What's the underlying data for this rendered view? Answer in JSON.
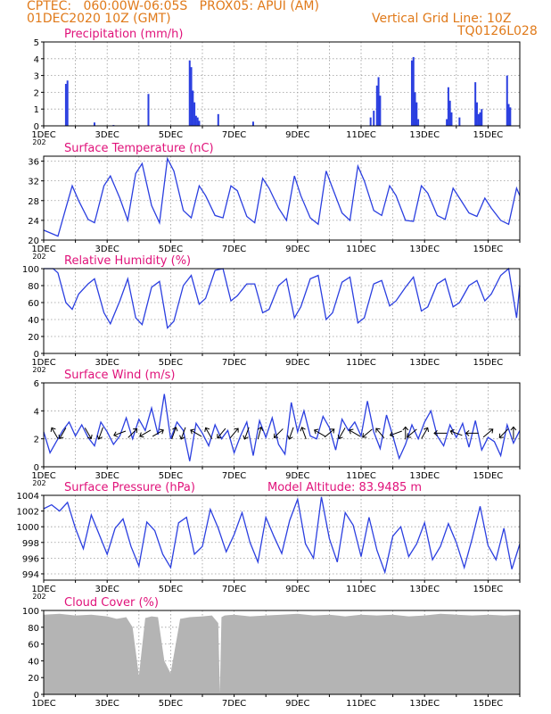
{
  "header": {
    "left_line1": "CPTEC:   060:00W-06:05S   PROX05: APUI (AM)",
    "left_line2": "01DEC2020 10Z (GMT)",
    "right_line1": "Vertical Grid Line: 10Z",
    "right_line2": "TQ0126L028"
  },
  "colors": {
    "title": "#e0127a",
    "header": "#e07a1a",
    "series": "#2b3fe0",
    "cloud": "#b4b4b4"
  },
  "x_labels": [
    "1DEC",
    "3DEC",
    "5DEC",
    "7DEC",
    "9DEC",
    "11DEC",
    "13DEC",
    "15DEC"
  ],
  "year_stub": "202",
  "chart_data": [
    {
      "type": "bar",
      "title": "Precipitation (mm/h)",
      "ylim": [
        0,
        5
      ],
      "yticks": [
        0,
        1,
        2,
        3,
        4,
        5
      ],
      "x_range_days": [
        1,
        16
      ],
      "bars": [
        [
          1.7,
          2.5
        ],
        [
          1.75,
          2.7
        ],
        [
          2.6,
          0.2
        ],
        [
          3.2,
          0.05
        ],
        [
          4.3,
          1.9
        ],
        [
          5.6,
          3.9
        ],
        [
          5.65,
          3.5
        ],
        [
          5.7,
          2.1
        ],
        [
          5.75,
          1.4
        ],
        [
          5.8,
          0.6
        ],
        [
          5.85,
          0.5
        ],
        [
          5.9,
          0.3
        ],
        [
          6.5,
          0.7
        ],
        [
          7.6,
          0.25
        ],
        [
          11.3,
          0.5
        ],
        [
          11.4,
          0.9
        ],
        [
          11.5,
          2.4
        ],
        [
          11.55,
          2.9
        ],
        [
          11.6,
          1.8
        ],
        [
          12.6,
          3.9
        ],
        [
          12.65,
          4.1
        ],
        [
          12.7,
          2.0
        ],
        [
          12.75,
          1.4
        ],
        [
          12.8,
          0.4
        ],
        [
          13.7,
          0.4
        ],
        [
          13.75,
          2.3
        ],
        [
          13.8,
          1.5
        ],
        [
          13.85,
          0.8
        ],
        [
          14.1,
          0.5
        ],
        [
          14.6,
          2.6
        ],
        [
          14.65,
          1.4
        ],
        [
          14.7,
          0.7
        ],
        [
          14.75,
          0.8
        ],
        [
          14.8,
          1.0
        ],
        [
          15.6,
          3.0
        ],
        [
          15.65,
          1.3
        ],
        [
          15.7,
          1.1
        ]
      ]
    },
    {
      "type": "line",
      "title": "Surface Temperature (nC)",
      "ylim": [
        20,
        37
      ],
      "yticks": [
        20,
        24,
        28,
        32,
        36
      ],
      "x_range_days": [
        1,
        16
      ],
      "x": [
        1.0,
        1.3,
        1.45,
        1.7,
        1.9,
        2.1,
        2.4,
        2.6,
        2.9,
        3.1,
        3.4,
        3.65,
        3.9,
        4.1,
        4.4,
        4.65,
        4.9,
        5.1,
        5.4,
        5.65,
        5.9,
        6.1,
        6.4,
        6.65,
        6.9,
        7.1,
        7.4,
        7.65,
        7.9,
        8.1,
        8.4,
        8.65,
        8.9,
        9.1,
        9.4,
        9.65,
        9.9,
        10.1,
        10.4,
        10.65,
        10.9,
        11.1,
        11.4,
        11.65,
        11.9,
        12.1,
        12.4,
        12.65,
        12.9,
        13.1,
        13.4,
        13.65,
        13.9,
        14.1,
        14.4,
        14.65,
        14.9,
        15.1,
        15.4,
        15.65,
        15.9,
        16.0
      ],
      "values": [
        22.0,
        21.2,
        20.8,
        26.5,
        31.0,
        28.0,
        24.2,
        23.5,
        31.0,
        33.0,
        28.5,
        24.0,
        33.5,
        35.5,
        27.0,
        23.5,
        36.5,
        34.0,
        26.0,
        24.5,
        31.0,
        29.0,
        25.0,
        24.5,
        31.0,
        30.0,
        24.8,
        23.5,
        32.5,
        30.5,
        26.5,
        24.0,
        33.0,
        29.0,
        24.5,
        23.2,
        34.0,
        30.5,
        25.5,
        24.0,
        35.0,
        32.0,
        26.0,
        25.0,
        31.0,
        29.0,
        24.0,
        23.8,
        31.0,
        29.5,
        25.0,
        24.2,
        30.5,
        28.5,
        25.5,
        24.8,
        28.5,
        26.5,
        24.0,
        23.2,
        30.5,
        29.0
      ]
    },
    {
      "type": "line",
      "title": "Relative Humidity (%)",
      "ylim": [
        0,
        100
      ],
      "yticks": [
        0,
        20,
        40,
        60,
        80,
        100
      ],
      "x_range_days": [
        1,
        16
      ],
      "x": [
        1.0,
        1.3,
        1.45,
        1.7,
        1.9,
        2.1,
        2.4,
        2.6,
        2.9,
        3.1,
        3.4,
        3.65,
        3.9,
        4.1,
        4.4,
        4.65,
        4.9,
        5.1,
        5.4,
        5.65,
        5.9,
        6.1,
        6.4,
        6.65,
        6.9,
        7.1,
        7.4,
        7.65,
        7.9,
        8.1,
        8.4,
        8.65,
        8.9,
        9.1,
        9.4,
        9.65,
        9.9,
        10.1,
        10.4,
        10.65,
        10.9,
        11.1,
        11.4,
        11.65,
        11.9,
        12.1,
        12.4,
        12.65,
        12.9,
        13.1,
        13.4,
        13.65,
        13.9,
        14.1,
        14.4,
        14.65,
        14.9,
        15.1,
        15.4,
        15.65,
        15.9,
        16.0
      ],
      "values": [
        100,
        100,
        95,
        60,
        52,
        70,
        82,
        88,
        48,
        35,
        62,
        88,
        42,
        34,
        78,
        85,
        30,
        38,
        80,
        92,
        58,
        65,
        98,
        100,
        62,
        68,
        82,
        82,
        48,
        52,
        80,
        88,
        42,
        55,
        88,
        92,
        40,
        48,
        84,
        90,
        36,
        42,
        82,
        86,
        56,
        62,
        78,
        90,
        50,
        55,
        82,
        88,
        55,
        60,
        80,
        86,
        62,
        70,
        92,
        100,
        42,
        80
      ]
    },
    {
      "type": "line",
      "title": "Surface Wind (m/s)",
      "ylim": [
        0,
        6
      ],
      "yticks": [
        0,
        2,
        4,
        6
      ],
      "x_range_days": [
        1,
        16
      ],
      "x": [
        1.0,
        1.2,
        1.4,
        1.6,
        1.8,
        2.0,
        2.2,
        2.4,
        2.6,
        2.8,
        3.0,
        3.2,
        3.4,
        3.6,
        3.8,
        4.0,
        4.2,
        4.4,
        4.6,
        4.8,
        5.0,
        5.2,
        5.4,
        5.6,
        5.8,
        6.0,
        6.2,
        6.4,
        6.6,
        6.8,
        7.0,
        7.2,
        7.4,
        7.6,
        7.8,
        8.0,
        8.2,
        8.4,
        8.6,
        8.8,
        9.0,
        9.2,
        9.4,
        9.6,
        9.8,
        10.0,
        10.2,
        10.4,
        10.6,
        10.8,
        11.0,
        11.2,
        11.4,
        11.6,
        11.8,
        12.0,
        12.2,
        12.4,
        12.6,
        12.8,
        13.0,
        13.2,
        13.4,
        13.6,
        13.8,
        14.0,
        14.2,
        14.4,
        14.6,
        14.8,
        15.0,
        15.2,
        15.4,
        15.6,
        15.8,
        16.0
      ],
      "values": [
        2.5,
        1.0,
        1.8,
        2.6,
        3.2,
        2.2,
        3.0,
        2.1,
        1.5,
        3.2,
        2.5,
        1.6,
        2.2,
        3.5,
        2.0,
        3.4,
        2.6,
        4.2,
        2.3,
        5.2,
        2.0,
        3.2,
        2.6,
        0.4,
        3.1,
        2.4,
        1.5,
        3.0,
        2.0,
        2.6,
        1.0,
        2.2,
        3.2,
        0.8,
        3.3,
        2.1,
        3.5,
        1.6,
        0.9,
        4.6,
        2.5,
        4.0,
        2.2,
        2.0,
        3.6,
        2.8,
        1.2,
        3.4,
        2.6,
        3.2,
        2.2,
        4.7,
        2.5,
        1.3,
        3.7,
        2.2,
        0.6,
        1.6,
        3.0,
        2.0,
        3.2,
        4.0,
        2.2,
        1.5,
        3.0,
        2.1,
        3.1,
        1.4,
        3.3,
        1.2,
        2.1,
        1.8,
        0.8,
        3.0,
        1.7,
        2.6
      ]
    },
    {
      "type": "line",
      "title": "Surface Pressure (hPa)",
      "annotation": "Model Altitude: 83.9485 m",
      "ylim": [
        993.2,
        1004
      ],
      "yticks": [
        994,
        996,
        998,
        1000,
        1002,
        1004
      ],
      "x_range_days": [
        1,
        16
      ],
      "x": [
        1.0,
        1.25,
        1.5,
        1.75,
        2.0,
        2.25,
        2.5,
        2.75,
        3.0,
        3.25,
        3.5,
        3.75,
        4.0,
        4.25,
        4.5,
        4.75,
        5.0,
        5.25,
        5.5,
        5.75,
        6.0,
        6.25,
        6.5,
        6.75,
        7.0,
        7.25,
        7.5,
        7.75,
        8.0,
        8.25,
        8.5,
        8.75,
        9.0,
        9.25,
        9.5,
        9.75,
        10.0,
        10.25,
        10.5,
        10.75,
        11.0,
        11.25,
        11.5,
        11.75,
        12.0,
        12.25,
        12.5,
        12.75,
        13.0,
        13.25,
        13.5,
        13.75,
        14.0,
        14.25,
        14.5,
        14.75,
        15.0,
        15.25,
        15.5,
        15.75,
        16.0
      ],
      "values": [
        1002.3,
        1002.8,
        1002.0,
        1003.1,
        999.8,
        997.2,
        1001.5,
        999.0,
        996.5,
        999.8,
        1001.0,
        997.5,
        995.0,
        1000.6,
        999.5,
        996.5,
        994.8,
        1000.5,
        1001.2,
        996.5,
        997.5,
        1002.2,
        999.8,
        996.8,
        999.0,
        1001.8,
        998.0,
        995.5,
        1001.2,
        998.8,
        996.6,
        1000.8,
        1003.5,
        997.8,
        996.0,
        1003.8,
        998.5,
        995.5,
        1001.8,
        1000.2,
        996.2,
        1001.2,
        997.0,
        994.2,
        998.8,
        1000.0,
        996.2,
        997.8,
        1000.5,
        995.8,
        997.5,
        1000.4,
        998.0,
        994.8,
        998.5,
        1002.6,
        997.6,
        995.8,
        999.8,
        994.6,
        997.8
      ]
    },
    {
      "type": "area",
      "title": "Cloud Cover (%)",
      "ylim": [
        0,
        100
      ],
      "yticks": [
        0,
        20,
        40,
        60,
        80,
        100
      ],
      "x_range_days": [
        1,
        16
      ],
      "x": [
        1.0,
        1.5,
        2.0,
        2.5,
        3.0,
        3.3,
        3.6,
        3.8,
        4.0,
        4.2,
        4.4,
        4.6,
        4.8,
        5.0,
        5.3,
        5.6,
        6.0,
        6.3,
        6.5,
        6.55,
        6.6,
        6.7,
        7.0,
        7.5,
        8.0,
        8.5,
        9.0,
        9.5,
        10.0,
        10.5,
        11.0,
        11.5,
        12.0,
        12.5,
        13.0,
        13.5,
        14.0,
        14.5,
        15.0,
        15.5,
        16.0
      ],
      "values": [
        95,
        96,
        94,
        95,
        93,
        90,
        92,
        80,
        22,
        91,
        93,
        92,
        40,
        25,
        90,
        92,
        93,
        94,
        85,
        2,
        92,
        94,
        95,
        93,
        94,
        95,
        96,
        94,
        95,
        93,
        95,
        94,
        95,
        93,
        94,
        96,
        95,
        94,
        95,
        94,
        95
      ]
    }
  ],
  "wind_arrows": [
    [
      1.35,
      330
    ],
    [
      1.6,
      210
    ],
    [
      2.4,
      150
    ],
    [
      2.8,
      200
    ],
    [
      3.4,
      250
    ],
    [
      3.8,
      45
    ],
    [
      4.2,
      240
    ],
    [
      4.6,
      60
    ],
    [
      5.1,
      20
    ],
    [
      5.4,
      200
    ],
    [
      5.8,
      300
    ],
    [
      6.2,
      330
    ],
    [
      6.6,
      220
    ],
    [
      7.0,
      40
    ],
    [
      7.4,
      200
    ],
    [
      7.8,
      15
    ],
    [
      8.4,
      225
    ],
    [
      8.8,
      200
    ],
    [
      9.2,
      340
    ],
    [
      9.7,
      300
    ],
    [
      10.0,
      50
    ],
    [
      10.4,
      210
    ],
    [
      10.8,
      300
    ],
    [
      11.2,
      230
    ],
    [
      11.6,
      320
    ],
    [
      12.1,
      250
    ],
    [
      12.4,
      0
    ],
    [
      12.6,
      230
    ],
    [
      13.0,
      30
    ],
    [
      13.5,
      270
    ],
    [
      14.0,
      290
    ],
    [
      14.5,
      270
    ],
    [
      15.0,
      50
    ],
    [
      15.5,
      225
    ],
    [
      15.8,
      0
    ]
  ]
}
